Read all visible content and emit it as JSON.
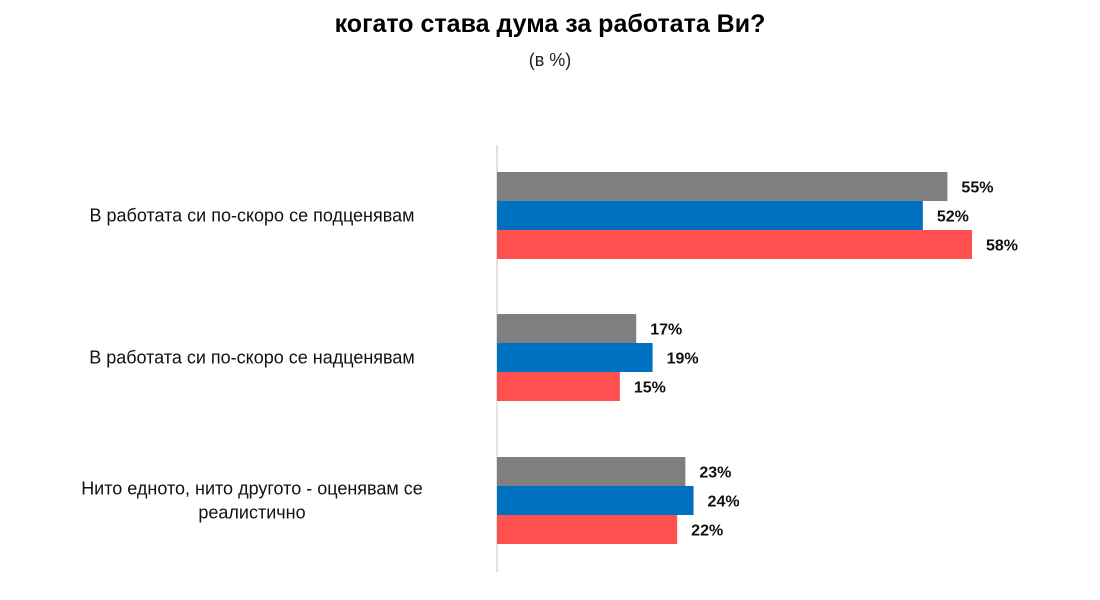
{
  "chart_data": {
    "type": "bar",
    "orientation": "horizontal",
    "title": "когато става дума за работата Ви?",
    "subtitle": "(в %)",
    "categories": [
      "В работата си по-скоро се подценявам",
      "В работата си по-скоро се надценявам",
      "Нито едното, нито другото - оценявам се реалистично"
    ],
    "series": [
      {
        "values": [
          55,
          17,
          23
        ],
        "color": "#7f7f7f"
      },
      {
        "values": [
          52,
          19,
          24
        ],
        "color": "#0070c0"
      },
      {
        "values": [
          58,
          15,
          22
        ],
        "color": "#ff5050"
      }
    ],
    "value_suffix": "%",
    "grid": false,
    "legend": "none"
  }
}
